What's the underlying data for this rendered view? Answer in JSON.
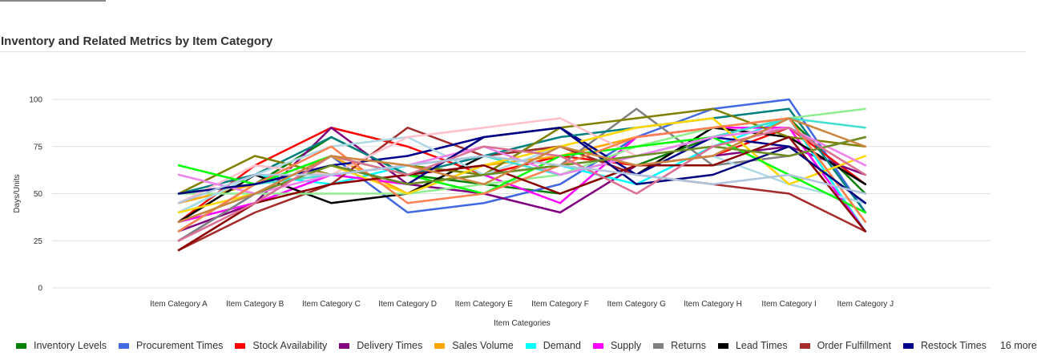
{
  "chart_data": {
    "type": "line",
    "title": "Inventory and Related Metrics by Item Category",
    "xlabel": "Item Categories",
    "ylabel": "Days/Units",
    "ylim": [
      0,
      100
    ],
    "yticks": [
      0,
      25,
      50,
      75,
      100
    ],
    "grid": true,
    "legend_position": "bottom",
    "legend_more_text": "16 more",
    "categories": [
      "Item Category A",
      "Item Category B",
      "Item Category C",
      "Item Category D",
      "Item Category E",
      "Item Category F",
      "Item Category G",
      "Item Category H",
      "Item Category I",
      "Item Category J"
    ],
    "series": [
      {
        "name": "Inventory Levels",
        "color": "#008000",
        "values": [
          30,
          55,
          80,
          60,
          55,
          50,
          65,
          80,
          90,
          50
        ]
      },
      {
        "name": "Procurement Times",
        "color": "#4169E1",
        "values": [
          25,
          50,
          70,
          40,
          45,
          55,
          80,
          95,
          100,
          40
        ]
      },
      {
        "name": "Stock Availability",
        "color": "#FF0000",
        "values": [
          35,
          65,
          85,
          75,
          60,
          70,
          65,
          70,
          85,
          55
        ]
      },
      {
        "name": "Delivery Times",
        "color": "#800080",
        "values": [
          30,
          45,
          85,
          55,
          50,
          40,
          65,
          70,
          75,
          60
        ]
      },
      {
        "name": "Sales Volume",
        "color": "#FFA500",
        "values": [
          45,
          55,
          70,
          50,
          65,
          70,
          80,
          85,
          90,
          35
        ]
      },
      {
        "name": "Demand",
        "color": "#00FFFF",
        "values": [
          40,
          60,
          55,
          65,
          60,
          65,
          55,
          75,
          90,
          30
        ]
      },
      {
        "name": "Supply",
        "color": "#FF00FF",
        "values": [
          35,
          45,
          60,
          55,
          60,
          45,
          80,
          85,
          85,
          30
        ]
      },
      {
        "name": "Returns",
        "color": "#808080",
        "values": [
          25,
          50,
          65,
          55,
          60,
          65,
          95,
          65,
          70,
          80
        ]
      },
      {
        "name": "Lead Times",
        "color": "#000000",
        "values": [
          35,
          60,
          45,
          50,
          70,
          75,
          60,
          85,
          80,
          55
        ]
      },
      {
        "name": "Order Fulfillment",
        "color": "#A52A2A",
        "values": [
          20,
          40,
          55,
          85,
          70,
          75,
          60,
          55,
          50,
          30
        ]
      },
      {
        "name": "Restock Times",
        "color": "#00008B",
        "values": [
          50,
          55,
          65,
          70,
          80,
          85,
          60,
          80,
          75,
          45
        ]
      },
      {
        "name": "",
        "color": "#008080",
        "values": [
          50,
          60,
          80,
          60,
          70,
          80,
          85,
          90,
          95,
          40
        ]
      },
      {
        "name": "",
        "color": "#808000",
        "values": [
          50,
          70,
          60,
          65,
          60,
          85,
          90,
          95,
          80,
          75
        ]
      },
      {
        "name": "",
        "color": "#90EE90",
        "values": [
          50,
          50,
          50,
          50,
          55,
          60,
          75,
          85,
          90,
          95
        ]
      },
      {
        "name": "",
        "color": "#ADD8E6",
        "values": [
          40,
          60,
          75,
          80,
          60,
          75,
          65,
          70,
          55,
          45
        ]
      },
      {
        "name": "",
        "color": "#FFC0CB",
        "values": [
          45,
          65,
          60,
          80,
          85,
          90,
          70,
          80,
          85,
          65
        ]
      },
      {
        "name": "",
        "color": "#40E0D0",
        "values": [
          30,
          55,
          60,
          65,
          70,
          60,
          70,
          80,
          90,
          85
        ]
      },
      {
        "name": "",
        "color": "#FFD700",
        "values": [
          40,
          50,
          65,
          50,
          65,
          75,
          85,
          90,
          55,
          70
        ]
      },
      {
        "name": "",
        "color": "#00FF00",
        "values": [
          65,
          55,
          70,
          60,
          50,
          70,
          75,
          80,
          60,
          40
        ]
      },
      {
        "name": "",
        "color": "#EE82EE",
        "values": [
          60,
          50,
          60,
          65,
          75,
          60,
          70,
          80,
          85,
          65
        ]
      },
      {
        "name": "",
        "color": "#FF7F50",
        "values": [
          30,
          55,
          75,
          45,
          50,
          65,
          80,
          85,
          90,
          35
        ]
      },
      {
        "name": "",
        "color": "#8B0000",
        "values": [
          20,
          45,
          55,
          60,
          65,
          50,
          65,
          65,
          80,
          30
        ]
      },
      {
        "name": "",
        "color": "#000080",
        "values": [
          50,
          55,
          65,
          55,
          80,
          85,
          55,
          60,
          75,
          45
        ]
      },
      {
        "name": "",
        "color": "#6B8E23",
        "values": [
          35,
          50,
          65,
          55,
          60,
          65,
          70,
          75,
          70,
          80
        ]
      },
      {
        "name": "",
        "color": "#DB7093",
        "values": [
          25,
          45,
          70,
          60,
          75,
          70,
          50,
          75,
          85,
          60
        ]
      },
      {
        "name": "",
        "color": "#B0C4DE",
        "values": [
          45,
          60,
          60,
          65,
          70,
          65,
          60,
          55,
          60,
          50
        ]
      },
      {
        "name": "",
        "color": "#CD853F",
        "values": [
          35,
          50,
          70,
          65,
          55,
          75,
          65,
          70,
          90,
          75
        ]
      }
    ],
    "legend_visible_count": 11
  }
}
